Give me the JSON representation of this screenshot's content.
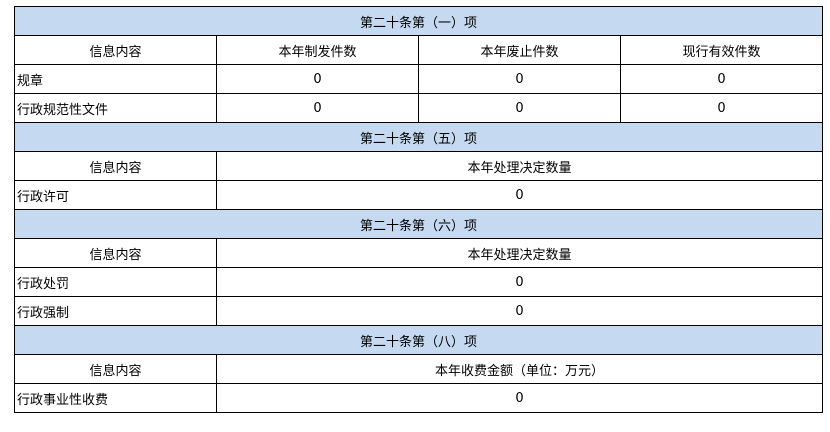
{
  "sections": [
    {
      "title": "第二十条第（一）项",
      "headers": [
        "信息内容",
        "本年制发件数",
        "本年废止件数",
        "现行有效件数"
      ],
      "rows": [
        [
          "规章",
          "0",
          "0",
          "0"
        ],
        [
          "行政规范性文件",
          "0",
          "0",
          "0"
        ]
      ]
    },
    {
      "title": "第二十条第（五）项",
      "headers": [
        "信息内容",
        "本年处理决定数量"
      ],
      "rows": [
        [
          "行政许可",
          "0"
        ]
      ]
    },
    {
      "title": "第二十条第（六）项",
      "headers": [
        "信息内容",
        "本年处理决定数量"
      ],
      "rows": [
        [
          "行政处罚",
          "0"
        ],
        [
          "行政强制",
          "0"
        ]
      ]
    },
    {
      "title": "第二十条第（八）项",
      "headers": [
        "信息内容",
        "本年收费金额（单位：万元）"
      ],
      "rows": [
        [
          "行政事业性收费",
          "0"
        ]
      ]
    }
  ],
  "colors": {
    "section_header_bg": "#c5d9f1"
  }
}
